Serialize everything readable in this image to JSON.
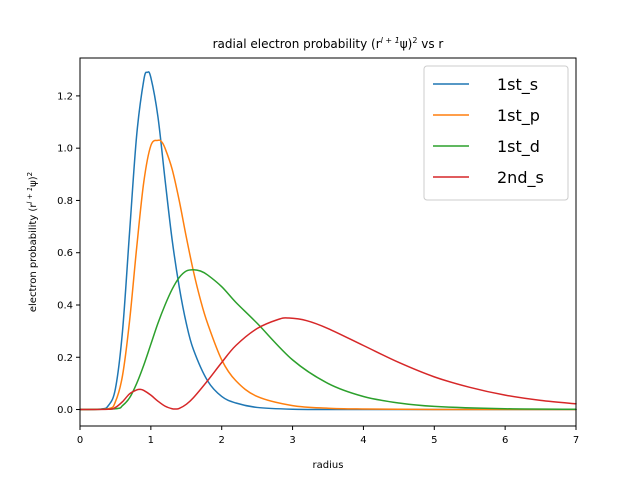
{
  "chart_data": {
    "type": "line",
    "title": {
      "base": "radial electron probability (r",
      "sup1": "l + 1",
      "mid": "ψ)",
      "sup2": "2",
      "tail": " vs r"
    },
    "xlabel": "radius",
    "ylabel": {
      "base": "electron probability (r",
      "sup1": "l + 1",
      "mid": "ψ)",
      "sup2": "2"
    },
    "xlim": [
      0,
      7
    ],
    "ylim": [
      -0.063,
      1.345
    ],
    "x_ticks": [
      0,
      1,
      2,
      3,
      4,
      5,
      6,
      7
    ],
    "y_ticks": [
      "0.0",
      "0.2",
      "0.4",
      "0.6",
      "0.8",
      "1.0",
      "1.2"
    ],
    "grid": false,
    "legend_position": "top-right",
    "series": [
      {
        "name": "1st_s",
        "color": "#1f77b4",
        "x": [
          0,
          0.3,
          0.4,
          0.5,
          0.6,
          0.7,
          0.8,
          0.9,
          0.95,
          1.0,
          1.1,
          1.2,
          1.3,
          1.4,
          1.5,
          1.6,
          1.8,
          2.0,
          2.2,
          2.5,
          3.0,
          3.5,
          4.0,
          5.0,
          7.0
        ],
        "y": [
          0,
          0.002,
          0.015,
          0.08,
          0.3,
          0.68,
          1.05,
          1.26,
          1.29,
          1.27,
          1.12,
          0.88,
          0.65,
          0.47,
          0.33,
          0.23,
          0.11,
          0.05,
          0.025,
          0.008,
          0.001,
          0,
          0,
          0,
          0
        ]
      },
      {
        "name": "1st_p",
        "color": "#ff7f0e",
        "x": [
          0,
          0.4,
          0.5,
          0.6,
          0.7,
          0.8,
          0.9,
          1.0,
          1.1,
          1.15,
          1.2,
          1.3,
          1.4,
          1.5,
          1.6,
          1.7,
          1.8,
          2.0,
          2.2,
          2.5,
          3.0,
          3.5,
          4.0,
          5.0,
          7.0
        ],
        "y": [
          0,
          0.003,
          0.03,
          0.13,
          0.34,
          0.62,
          0.87,
          1.01,
          1.03,
          1.025,
          1.0,
          0.92,
          0.8,
          0.66,
          0.53,
          0.42,
          0.33,
          0.19,
          0.11,
          0.05,
          0.015,
          0.005,
          0.002,
          0,
          0
        ]
      },
      {
        "name": "1st_d",
        "color": "#2ca02c",
        "x": [
          0,
          0.5,
          0.6,
          0.7,
          0.8,
          0.9,
          1.0,
          1.1,
          1.2,
          1.3,
          1.4,
          1.5,
          1.6,
          1.7,
          1.8,
          2.0,
          2.2,
          2.5,
          3.0,
          3.5,
          4.0,
          4.5,
          5.0,
          6.0,
          7.0
        ],
        "y": [
          0,
          0.003,
          0.015,
          0.045,
          0.1,
          0.17,
          0.25,
          0.33,
          0.4,
          0.46,
          0.505,
          0.53,
          0.535,
          0.53,
          0.515,
          0.47,
          0.41,
          0.33,
          0.19,
          0.1,
          0.05,
          0.025,
          0.012,
          0.003,
          0.001
        ]
      },
      {
        "name": "2nd_s",
        "color": "#d62728",
        "x": [
          0,
          0.4,
          0.5,
          0.6,
          0.7,
          0.8,
          0.85,
          0.9,
          1.0,
          1.1,
          1.2,
          1.3,
          1.35,
          1.4,
          1.5,
          1.6,
          1.8,
          2.0,
          2.2,
          2.5,
          2.8,
          2.95,
          3.2,
          3.5,
          4.0,
          4.5,
          5.0,
          5.5,
          6.0,
          6.5,
          7.0
        ],
        "y": [
          0,
          0.001,
          0.008,
          0.03,
          0.06,
          0.075,
          0.077,
          0.073,
          0.055,
          0.032,
          0.013,
          0.003,
          0.002,
          0.004,
          0.02,
          0.045,
          0.11,
          0.18,
          0.245,
          0.31,
          0.345,
          0.35,
          0.34,
          0.31,
          0.245,
          0.18,
          0.125,
          0.085,
          0.055,
          0.035,
          0.022
        ]
      }
    ]
  }
}
